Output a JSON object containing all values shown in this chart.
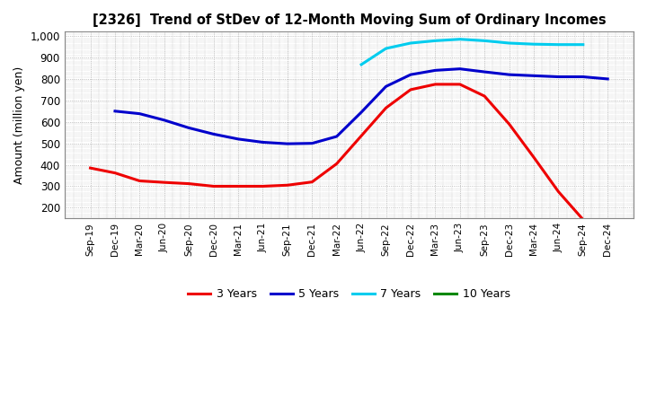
{
  "title": "[2326]  Trend of StDev of 12-Month Moving Sum of Ordinary Incomes",
  "ylabel": "Amount (million yen)",
  "background_color": "#ffffff",
  "plot_background": "#ffffff",
  "grid_color": "#999999",
  "xlabels": [
    "Sep-19",
    "Dec-19",
    "Mar-20",
    "Jun-20",
    "Sep-20",
    "Dec-20",
    "Mar-21",
    "Jun-21",
    "Sep-21",
    "Dec-21",
    "Mar-22",
    "Jun-22",
    "Sep-22",
    "Dec-22",
    "Mar-23",
    "Jun-23",
    "Sep-23",
    "Dec-23",
    "Mar-24",
    "Jun-24",
    "Sep-24",
    "Dec-24"
  ],
  "ylim": [
    150,
    1020
  ],
  "yticks": [
    200,
    300,
    400,
    500,
    600,
    700,
    800,
    900,
    1000
  ],
  "series": {
    "3 Years": {
      "color": "#ee0000",
      "values": [
        385,
        362,
        325,
        318,
        312,
        300,
        300,
        300,
        305,
        320,
        405,
        535,
        665,
        750,
        775,
        775,
        720,
        590,
        435,
        275,
        145,
        null
      ]
    },
    "5 Years": {
      "color": "#0000cc",
      "values": [
        null,
        650,
        638,
        608,
        572,
        543,
        520,
        505,
        498,
        500,
        532,
        645,
        765,
        820,
        840,
        847,
        833,
        820,
        815,
        810,
        810,
        800
      ]
    },
    "7 Years": {
      "color": "#00ccee",
      "values": [
        null,
        null,
        null,
        null,
        null,
        null,
        null,
        null,
        null,
        null,
        null,
        867,
        942,
        967,
        978,
        985,
        978,
        967,
        962,
        960,
        960,
        null
      ]
    },
    "10 Years": {
      "color": "#008800",
      "values": [
        null,
        null,
        null,
        null,
        null,
        null,
        null,
        null,
        null,
        null,
        null,
        null,
        null,
        null,
        null,
        null,
        null,
        null,
        null,
        null,
        null,
        null
      ]
    }
  }
}
